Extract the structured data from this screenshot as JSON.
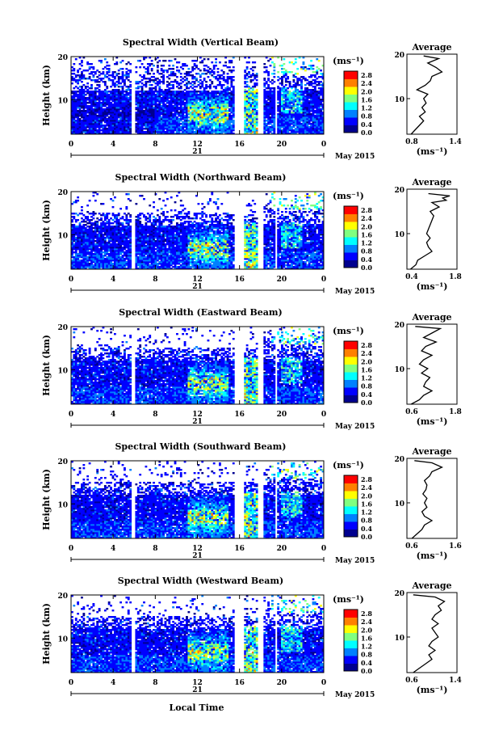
{
  "chart_data": {
    "type": "heatmap",
    "shared": {
      "x_ticks": [
        "0",
        "4",
        "8",
        "12",
        "16",
        "20",
        "0"
      ],
      "xlim_hours": [
        0,
        24
      ],
      "date_day": "21",
      "date_label": "May 2015",
      "y_ticks": [
        "10",
        "20"
      ],
      "ylim_km": [
        2,
        20
      ],
      "ylabel": "Height (km)",
      "xlabel": "Local Time",
      "colorbar_unit": "(ms⁻¹)",
      "colorbar_ticks": [
        "0.0",
        "0.4",
        "0.8",
        "1.2",
        "1.6",
        "2.0",
        "2.4",
        "2.8"
      ],
      "colorbar_range": [
        0,
        3.0
      ],
      "avg_title": "Average",
      "avg_unit": "(ms⁻¹)",
      "data_gaps_hours": [
        [
          5.8,
          6.0
        ],
        [
          15.6,
          16.4
        ],
        [
          17.8,
          18.2
        ],
        [
          19.3,
          19.6
        ]
      ],
      "colors": {
        "c0": "#00008f",
        "c1": "#0000ff",
        "c2": "#0080ff",
        "c3": "#00ffff",
        "c4": "#80ff80",
        "c5": "#ffff00",
        "c6": "#ff8000",
        "c7": "#ff0000",
        "c8": "#800000"
      }
    },
    "panels": [
      {
        "title": "Spectral Width (Vertical Beam)",
        "avg_xlim": [
          0.8,
          1.4
        ],
        "avg_xticks": [
          "0.8",
          "1.4"
        ],
        "avg_profile": [
          [
            2,
            0.85
          ],
          [
            3,
            0.9
          ],
          [
            4,
            0.95
          ],
          [
            5,
            1.0
          ],
          [
            6,
            0.95
          ],
          [
            7,
            1.02
          ],
          [
            8,
            0.98
          ],
          [
            9,
            1.03
          ],
          [
            10,
            1.0
          ],
          [
            11,
            1.05
          ],
          [
            12,
            0.92
          ],
          [
            13,
            1.02
          ],
          [
            14,
            1.08
          ],
          [
            15,
            1.1
          ],
          [
            16,
            1.22
          ],
          [
            17,
            1.15
          ],
          [
            18,
            1.05
          ],
          [
            19,
            1.18
          ],
          [
            19.6,
            1.0
          ]
        ]
      },
      {
        "title": "Spectral Width (Northward Beam)",
        "avg_xlim": [
          0.4,
          1.8
        ],
        "avg_xticks": [
          "0.4",
          "1.8"
        ],
        "avg_profile": [
          [
            2,
            0.5
          ],
          [
            3,
            0.65
          ],
          [
            4,
            0.7
          ],
          [
            5,
            0.9
          ],
          [
            6,
            1.1
          ],
          [
            7,
            1.0
          ],
          [
            8,
            0.95
          ],
          [
            9,
            1.05
          ],
          [
            10,
            0.95
          ],
          [
            11,
            1.0
          ],
          [
            12,
            1.05
          ],
          [
            13,
            1.1
          ],
          [
            14,
            1.15
          ],
          [
            15,
            1.05
          ],
          [
            16,
            1.3
          ],
          [
            17,
            1.1
          ],
          [
            17.5,
            1.5
          ],
          [
            18,
            1.4
          ],
          [
            18.5,
            1.6
          ],
          [
            19,
            1.0
          ]
        ]
      },
      {
        "title": "Spectral Width (Eastward Beam)",
        "avg_xlim": [
          0.6,
          1.8
        ],
        "avg_xticks": [
          "0.6",
          "1.8"
        ],
        "avg_profile": [
          [
            2,
            0.7
          ],
          [
            3,
            0.9
          ],
          [
            4,
            1.0
          ],
          [
            5,
            1.2
          ],
          [
            6,
            1.0
          ],
          [
            7,
            1.05
          ],
          [
            8,
            1.15
          ],
          [
            9,
            0.95
          ],
          [
            10,
            1.1
          ],
          [
            11,
            0.9
          ],
          [
            12,
            1.0
          ],
          [
            13,
            1.2
          ],
          [
            14,
            0.95
          ],
          [
            15,
            1.05
          ],
          [
            16,
            1.3
          ],
          [
            17,
            1.0
          ],
          [
            18,
            1.2
          ],
          [
            19,
            1.4
          ],
          [
            19.5,
            0.8
          ]
        ]
      },
      {
        "title": "Spectral Width (Southward Beam)",
        "avg_xlim": [
          0.6,
          1.6
        ],
        "avg_xticks": [
          "0.6",
          "1.6"
        ],
        "avg_profile": [
          [
            2,
            0.7
          ],
          [
            3,
            0.8
          ],
          [
            4,
            0.9
          ],
          [
            5,
            0.95
          ],
          [
            6,
            1.1
          ],
          [
            7,
            0.95
          ],
          [
            8,
            0.9
          ],
          [
            9,
            1.0
          ],
          [
            10,
            0.95
          ],
          [
            11,
            1.0
          ],
          [
            12,
            0.92
          ],
          [
            13,
            0.98
          ],
          [
            14,
            1.0
          ],
          [
            15,
            0.95
          ],
          [
            16,
            1.05
          ],
          [
            17,
            1.1
          ],
          [
            18,
            1.3
          ],
          [
            19,
            1.1
          ],
          [
            19.5,
            0.75
          ]
        ]
      },
      {
        "title": "Spectral Width (Westward Beam)",
        "avg_xlim": [
          0.6,
          1.4
        ],
        "avg_xticks": [
          "0.6",
          "1.4"
        ],
        "avg_profile": [
          [
            2,
            0.7
          ],
          [
            3,
            0.8
          ],
          [
            4,
            0.9
          ],
          [
            5,
            1.0
          ],
          [
            6,
            0.95
          ],
          [
            7,
            1.05
          ],
          [
            8,
            0.95
          ],
          [
            9,
            1.0
          ],
          [
            10,
            1.1
          ],
          [
            11,
            1.05
          ],
          [
            12,
            1.0
          ],
          [
            13,
            1.1
          ],
          [
            14,
            1.0
          ],
          [
            15,
            1.05
          ],
          [
            16,
            1.15
          ],
          [
            17,
            1.1
          ],
          [
            18,
            1.2
          ],
          [
            19,
            1.05
          ],
          [
            19.5,
            0.7
          ]
        ]
      }
    ]
  }
}
